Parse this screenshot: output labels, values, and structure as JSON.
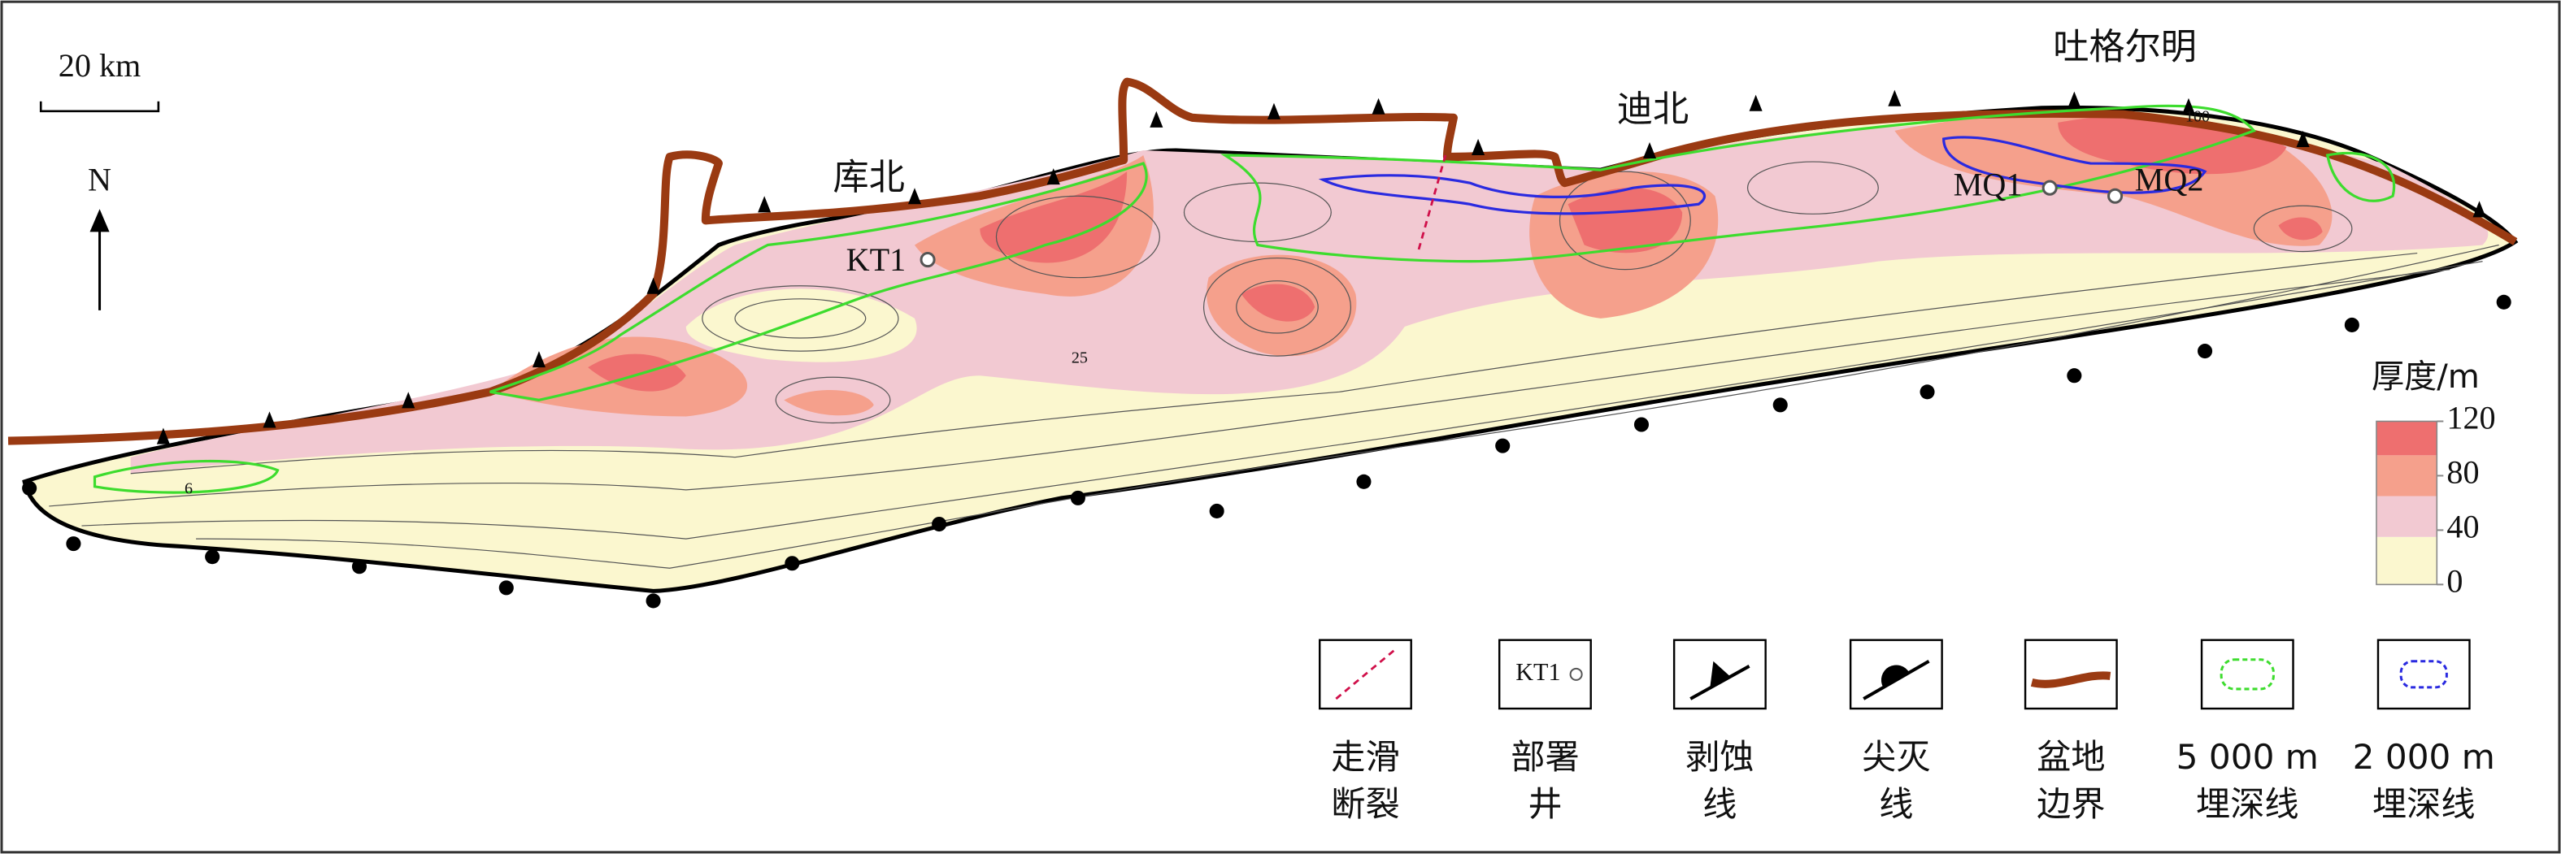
{
  "scale_bar": "20 km",
  "north": "N",
  "places": [
    "库北",
    "迪北",
    "吐格尔明"
  ],
  "wells": [
    "KT1",
    "MQ1",
    "MQ2"
  ],
  "contour_labels": [
    "6",
    "25",
    "100"
  ],
  "thickness_legend": {
    "title": "厚度/m",
    "ticks": [
      0,
      40,
      80,
      120
    ],
    "bands": [
      {
        "range": [
          0,
          35
        ],
        "color": "#fbf7cf"
      },
      {
        "range": [
          35,
          65
        ],
        "color": "#f2c9d2"
      },
      {
        "range": [
          65,
          95
        ],
        "color": "#f5a08c"
      },
      {
        "range": [
          95,
          120
        ],
        "color": "#ee6f6f"
      }
    ]
  },
  "legend": [
    {
      "label": [
        "走滑",
        "断裂"
      ]
    },
    {
      "icon_text": "KT1",
      "label": [
        "部署",
        "井"
      ]
    },
    {
      "label": [
        "剥蚀",
        "线"
      ]
    },
    {
      "label": [
        "尖灭",
        "线"
      ]
    },
    {
      "label": [
        "盆地",
        "边界"
      ]
    },
    {
      "label": [
        "5 000 m",
        "埋深线"
      ]
    },
    {
      "label": [
        "2 000 m",
        "埋深线"
      ]
    }
  ]
}
